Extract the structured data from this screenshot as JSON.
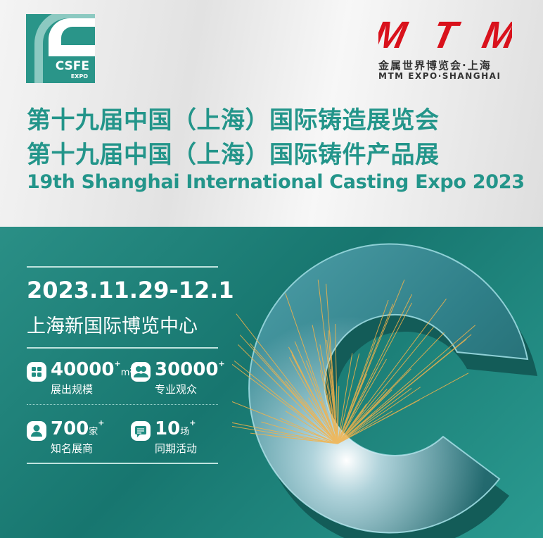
{
  "logo": {
    "text": "CSFE",
    "sub": "EXPO"
  },
  "partner": {
    "brand": "MTM",
    "cn": "金属世界博览会·上海",
    "en": "MTM EXPO·SHANGHAI"
  },
  "titles": {
    "cn1": "第十九届中国（上海）国际铸造展览会",
    "cn2": "第十九届中国（上海）国际铸件产品展",
    "en": "19th Shanghai International Casting Expo 2023"
  },
  "event": {
    "date": "2023.11.29-12.1",
    "venue": "上海新国际博览中心"
  },
  "stats": [
    {
      "icon": "grid-icon",
      "value": "40000",
      "unit": "m²",
      "label": "展出规模"
    },
    {
      "icon": "users-icon",
      "value": "30000",
      "unit": "",
      "label": "专业观众"
    },
    {
      "icon": "user-icon",
      "value": "700",
      "unit": "家",
      "label": "知名展商"
    },
    {
      "icon": "chat-icon",
      "value": "10",
      "unit": "场",
      "label": "同期活动"
    }
  ],
  "plus": "+",
  "colors": {
    "teal": "#23958a",
    "red": "#d9121c"
  }
}
